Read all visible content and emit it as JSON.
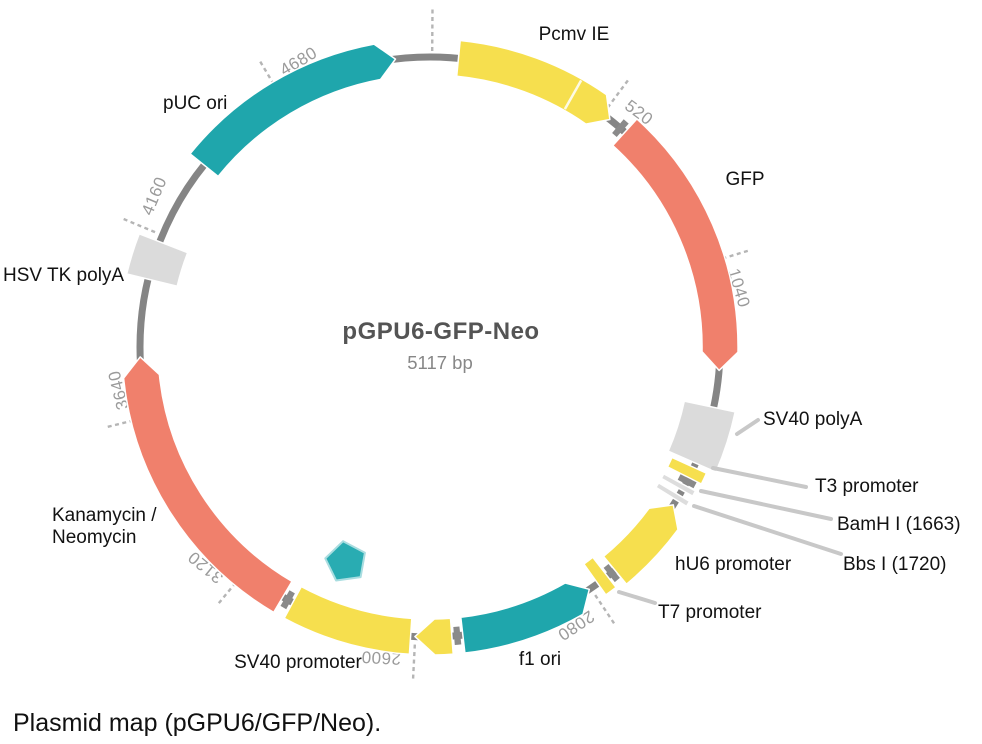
{
  "plasmid": {
    "name": "pGPU6-GFP-Neo",
    "size_label": "5117 bp",
    "length_bp": 5117
  },
  "caption": "Plasmid map (pGPU6/GFP/Neo).",
  "colors": {
    "yellow": "#F6DF4E",
    "salmon": "#F0806C",
    "teal": "#1FA6AC",
    "gray": "#DBDBDB",
    "marker": "#DDDDDD",
    "backbone": "#858585",
    "connector": "#8A8A8A",
    "leader": "#C8C8C8",
    "tick_text": "#9B9B9B",
    "tick_dash": "#B5B5B5",
    "title": "#545454",
    "subtitle": "#878787",
    "pentagon_fill": "#29ACB2",
    "pentagon_stroke": "#A9DDE0"
  },
  "ticks": [
    520,
    1040,
    2080,
    2600,
    3120,
    3640,
    4160,
    4680
  ],
  "origin_tick_bp": 6,
  "features": [
    {
      "id": "pcmv-ie",
      "label": "Pcmv IE",
      "color": "yellow",
      "start": 80,
      "end": 545,
      "kind": "arc",
      "tip": "cw",
      "tip_bp": 48,
      "divider_bp": 420
    },
    {
      "id": "gfp",
      "label": "GFP",
      "color": "salmon",
      "start": 600,
      "end": 1345,
      "kind": "arc",
      "tip": "cw",
      "tip_bp": 52
    },
    {
      "id": "sv40-polya",
      "label": "SV40 polyA",
      "color": "gray",
      "start": 1450,
      "end": 1615,
      "kind": "box"
    },
    {
      "id": "t3-promoter",
      "label": "T3 promoter",
      "color": "yellow",
      "start": 1628,
      "end": 1660,
      "kind": "sliver"
    },
    {
      "id": "bamhi-site",
      "label": "BamH I (1663)",
      "color": "marker",
      "start": 1684,
      "end": 1700,
      "kind": "marker"
    },
    {
      "id": "bbsi-site",
      "label": "Bbs I (1720)",
      "color": "marker",
      "start": 1716,
      "end": 1732,
      "kind": "marker"
    },
    {
      "id": "hu6-promoter",
      "label": "hU6 promoter",
      "color": "yellow",
      "start": 1748,
      "end": 1995,
      "kind": "arc",
      "tip": "ccw",
      "tip_bp": 48
    },
    {
      "id": "t7-promoter",
      "label": "T7 promoter",
      "color": "yellow",
      "start": 2022,
      "end": 2056,
      "kind": "sliver"
    },
    {
      "id": "f1-ori",
      "label": "f1 ori",
      "color": "teal",
      "start": 2085,
      "end": 2466,
      "kind": "arc",
      "tip": "ccw",
      "tip_bp": 50
    },
    {
      "id": "sv40-promoter-head",
      "label": "",
      "color": "yellow",
      "start": 2497,
      "end": 2601,
      "kind": "arc",
      "tip": "cw",
      "tip_bp": 56
    },
    {
      "id": "sv40-promoter",
      "label": "SV40 promoter",
      "color": "yellow",
      "start": 2613,
      "end": 2960,
      "kind": "arc"
    },
    {
      "id": "kan-neo",
      "label": "Kanamycin / Neomycin",
      "label_lines": [
        "Kanamycin /",
        "Neomycin"
      ],
      "color": "salmon",
      "start": 2992,
      "end": 3810,
      "kind": "arc",
      "tip": "cw",
      "tip_bp": 55
    },
    {
      "id": "hsv-tk-polya",
      "label": "HSV TK polyA",
      "color": "gray",
      "start": 4030,
      "end": 4140,
      "kind": "box"
    },
    {
      "id": "puc-ori",
      "label": "pUC ori",
      "color": "teal",
      "start": 4390,
      "end": 5020,
      "kind": "arc",
      "tip": "cw",
      "tip_bp": 52
    }
  ],
  "connectors_bp": [
    583,
    1671,
    2007,
    2482,
    2976
  ],
  "insert_marker": {
    "shape": "pentagon"
  }
}
